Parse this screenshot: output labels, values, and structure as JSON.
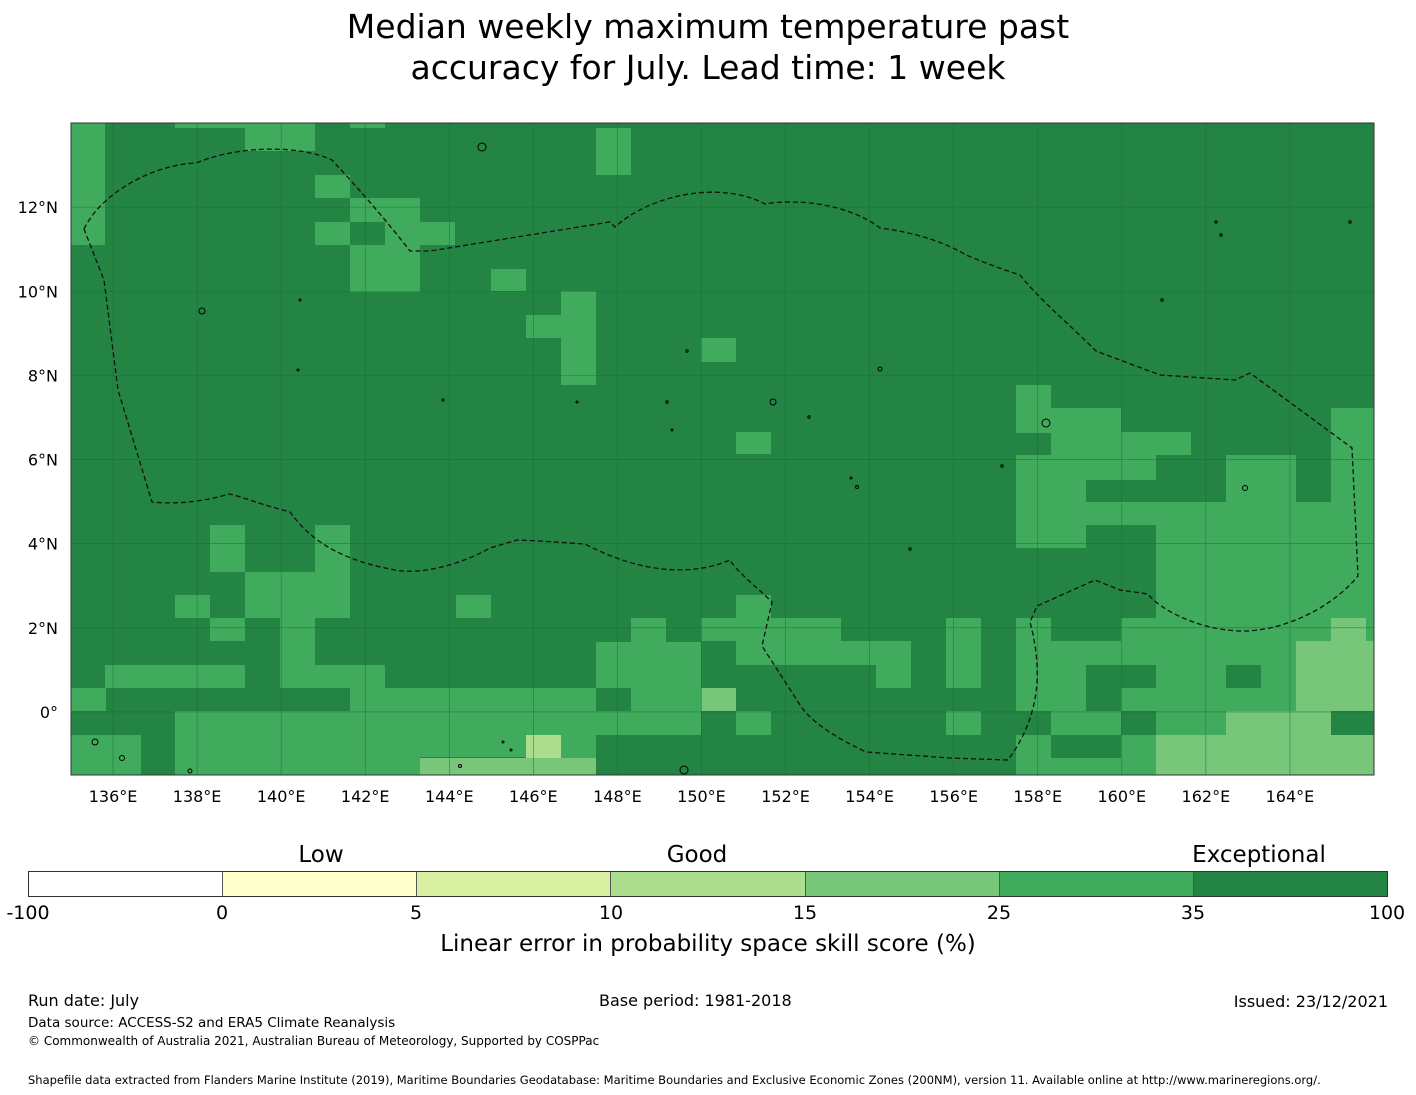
{
  "title": {
    "line1": "Median weekly maximum temperature past",
    "line2": "accuracy for July. Lead time: 1 week"
  },
  "map": {
    "lon_range": [
      135,
      166
    ],
    "lat_range": [
      -1.5,
      14
    ],
    "lon_ticks": [
      "136°E",
      "138°E",
      "140°E",
      "142°E",
      "144°E",
      "146°E",
      "148°E",
      "150°E",
      "152°E",
      "154°E",
      "156°E",
      "158°E",
      "160°E",
      "162°E",
      "164°E"
    ],
    "lat_ticks": [
      "12°N",
      "10°N",
      "8°N",
      "6°N",
      "4°N",
      "2°N",
      "0°"
    ],
    "base_color": "#238443",
    "colors": {
      "c35": "#238443",
      "c25": "#41ab5d",
      "c15": "#78c679",
      "c10": "#addd8e"
    }
  },
  "colorbar": {
    "headers": [
      "Low",
      "Good",
      "Exceptional"
    ],
    "ticks": [
      "-100",
      "0",
      "5",
      "10",
      "15",
      "25",
      "35",
      "100"
    ],
    "colors": [
      "#ffffff",
      "#ffffcc",
      "#d9f0a3",
      "#addd8e",
      "#78c679",
      "#41ab5d",
      "#238443"
    ],
    "label": "Linear error in probability space skill score (%)"
  },
  "footer": {
    "run_date": "Run date: July",
    "base_period": "Base period: 1981-2018",
    "issued": "Issued: 23/12/2021",
    "data_source": "Data source: ACCESS-S2 and ERA5 Climate Reanalysis",
    "copyright": "© Commonwealth of Australia 2021, Australian Bureau of Meteorology, Supported by COSPPac",
    "shapefile": "Shapefile data extracted from Flanders Marine Institute (2019), Maritime Boundaries Geodatabase: Maritime Boundaries and Exclusive Economic Zones (200NM), version 11. Available online at http://www.marineregions.org/."
  }
}
